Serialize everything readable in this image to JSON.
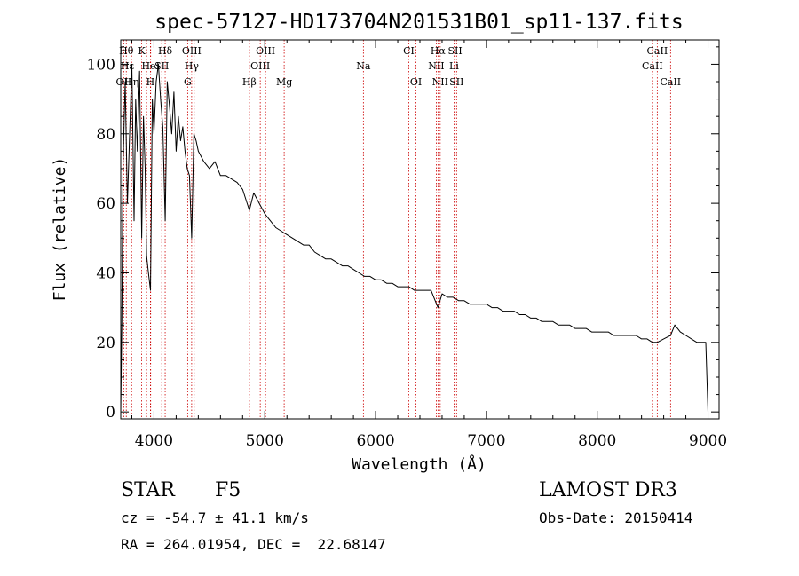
{
  "chart_data": {
    "type": "line",
    "title": "spec-57127-HD173704N201531B01_sp11-137.fits",
    "xlabel": "Wavelength (Å)",
    "ylabel": "Flux (relative)",
    "xlim": [
      3700,
      9100
    ],
    "ylim": [
      -2,
      107
    ],
    "x_ticks": [
      4000,
      5000,
      6000,
      7000,
      8000,
      9000
    ],
    "y_ticks": [
      0,
      20,
      40,
      60,
      80,
      100
    ],
    "y_tick_labels": [
      "0",
      "20",
      "40",
      "60",
      "80",
      "100"
    ],
    "grid": false,
    "series": [
      {
        "name": "spectrum",
        "x": [
          3700,
          3710,
          3720,
          3740,
          3760,
          3780,
          3800,
          3820,
          3835,
          3850,
          3870,
          3889,
          3905,
          3920,
          3933,
          3950,
          3968,
          3985,
          4000,
          4020,
          4040,
          4060,
          4080,
          4101,
          4120,
          4140,
          4160,
          4180,
          4200,
          4220,
          4240,
          4260,
          4280,
          4300,
          4320,
          4340,
          4360,
          4380,
          4400,
          4450,
          4500,
          4550,
          4600,
          4650,
          4700,
          4750,
          4800,
          4861,
          4900,
          4950,
          5000,
          5050,
          5100,
          5150,
          5200,
          5250,
          5300,
          5350,
          5400,
          5450,
          5500,
          5550,
          5600,
          5650,
          5700,
          5750,
          5800,
          5850,
          5900,
          5950,
          6000,
          6050,
          6100,
          6150,
          6200,
          6250,
          6300,
          6350,
          6400,
          6450,
          6500,
          6563,
          6600,
          6650,
          6700,
          6750,
          6800,
          6850,
          6900,
          6950,
          7000,
          7050,
          7100,
          7150,
          7200,
          7250,
          7300,
          7350,
          7400,
          7450,
          7500,
          7550,
          7600,
          7650,
          7700,
          7750,
          7800,
          7850,
          7900,
          7950,
          8000,
          8050,
          8100,
          8150,
          8200,
          8250,
          8300,
          8350,
          8400,
          8450,
          8498,
          8542,
          8600,
          8662,
          8700,
          8750,
          8800,
          8850,
          8900,
          8950,
          8980,
          9000
        ],
        "values": [
          0,
          25,
          70,
          95,
          60,
          80,
          100,
          55,
          90,
          75,
          98,
          50,
          85,
          70,
          45,
          40,
          35,
          90,
          80,
          95,
          100,
          90,
          82,
          55,
          95,
          88,
          80,
          92,
          75,
          85,
          78,
          82,
          75,
          70,
          68,
          50,
          80,
          78,
          75,
          72,
          70,
          72,
          68,
          68,
          67,
          66,
          64,
          58,
          63,
          60,
          57,
          55,
          53,
          52,
          51,
          50,
          49,
          48,
          48,
          46,
          45,
          44,
          44,
          43,
          42,
          42,
          41,
          40,
          39,
          39,
          38,
          38,
          37,
          37,
          36,
          36,
          36,
          35,
          35,
          35,
          35,
          30,
          34,
          33,
          33,
          32,
          32,
          31,
          31,
          31,
          31,
          30,
          30,
          29,
          29,
          29,
          28,
          28,
          27,
          27,
          26,
          26,
          26,
          25,
          25,
          25,
          24,
          24,
          24,
          23,
          23,
          23,
          23,
          22,
          22,
          22,
          22,
          22,
          21,
          21,
          20,
          20,
          21,
          22,
          25,
          23,
          22,
          21,
          20,
          20,
          20,
          0
        ]
      }
    ],
    "line_labels": [
      {
        "x": 3750,
        "label": "Hθ",
        "row": 0
      },
      {
        "x": 3889,
        "label": "K",
        "row": 0
      },
      {
        "x": 4101,
        "label": "Hδ",
        "row": 0
      },
      {
        "x": 4340,
        "label": "OIII",
        "row": 0
      },
      {
        "x": 5007,
        "label": "OIII",
        "row": 0
      },
      {
        "x": 6300,
        "label": "CI",
        "row": 0
      },
      {
        "x": 6563,
        "label": "Hα",
        "row": 0
      },
      {
        "x": 6717,
        "label": "SII",
        "row": 0
      },
      {
        "x": 8542,
        "label": "CaII",
        "row": 0
      },
      {
        "x": 3727,
        "label": "OII",
        "row": 0.5
      },
      {
        "x": 3760,
        "label": "Hε",
        "row": 1
      },
      {
        "x": 3970,
        "label": "HeI",
        "row": 1
      },
      {
        "x": 4070,
        "label": "SII",
        "row": 1
      },
      {
        "x": 4340,
        "label": "Hγ",
        "row": 1
      },
      {
        "x": 4959,
        "label": "OIII",
        "row": 1
      },
      {
        "x": 5890,
        "label": "Na",
        "row": 1
      },
      {
        "x": 6548,
        "label": "NII",
        "row": 1
      },
      {
        "x": 6708,
        "label": "Li",
        "row": 1
      },
      {
        "x": 8498,
        "label": "CaII",
        "row": 1
      },
      {
        "x": 3798,
        "label": "Hη",
        "row": 2
      },
      {
        "x": 3968,
        "label": "H",
        "row": 2
      },
      {
        "x": 4304,
        "label": "G",
        "row": 2
      },
      {
        "x": 4861,
        "label": "Hβ",
        "row": 2
      },
      {
        "x": 5175,
        "label": "Mg",
        "row": 2
      },
      {
        "x": 6364,
        "label": "OI",
        "row": 2
      },
      {
        "x": 6583,
        "label": "NII",
        "row": 2
      },
      {
        "x": 6731,
        "label": "SII",
        "row": 2
      },
      {
        "x": 8662,
        "label": "CaII",
        "row": 2
      }
    ],
    "line_markers": [
      3727,
      3750,
      3798,
      3889,
      3933,
      3968,
      3970,
      4070,
      4101,
      4304,
      4340,
      4363,
      4861,
      4959,
      5007,
      5175,
      5890,
      6300,
      6364,
      6548,
      6563,
      6583,
      6708,
      6717,
      6731,
      8498,
      8542,
      8662
    ]
  },
  "footer": {
    "object_type": "STAR",
    "subclass": "F5",
    "survey": "LAMOST DR3",
    "redshift": "cz = -54.7 ± 41.1 km/s",
    "obs_date": "Obs-Date: 20150414",
    "coords": "RA = 264.01954, DEC =  22.68147"
  }
}
